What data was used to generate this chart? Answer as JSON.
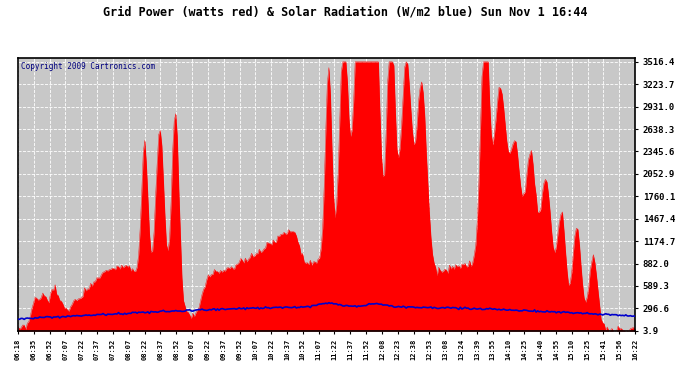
{
  "title": "Grid Power (watts red) & Solar Radiation (W/m2 blue) Sun Nov 1 16:44",
  "copyright": "Copyright 2009 Cartronics.com",
  "yticks": [
    3.9,
    296.6,
    589.3,
    882.0,
    1174.7,
    1467.4,
    1760.1,
    2052.9,
    2345.6,
    2638.3,
    2931.0,
    3223.7,
    3516.4
  ],
  "ymin": 0,
  "ymax": 3516.4,
  "xtick_labels": [
    "06:18",
    "06:35",
    "06:52",
    "07:07",
    "07:22",
    "07:37",
    "07:52",
    "08:07",
    "08:22",
    "08:37",
    "08:52",
    "09:07",
    "09:22",
    "09:37",
    "09:52",
    "10:07",
    "10:22",
    "10:37",
    "10:52",
    "11:07",
    "11:22",
    "11:37",
    "11:52",
    "12:08",
    "12:23",
    "12:38",
    "12:53",
    "13:08",
    "13:24",
    "13:39",
    "13:55",
    "14:10",
    "14:25",
    "14:40",
    "14:55",
    "15:10",
    "15:25",
    "15:41",
    "15:56",
    "16:22"
  ],
  "background_color": "#ffffff",
  "plot_bg_color": "#c8c8c8",
  "grid_color": "#ffffff",
  "red_color": "#ff0000",
  "blue_color": "#0000cc",
  "title_color": "#000000",
  "border_color": "#000000"
}
